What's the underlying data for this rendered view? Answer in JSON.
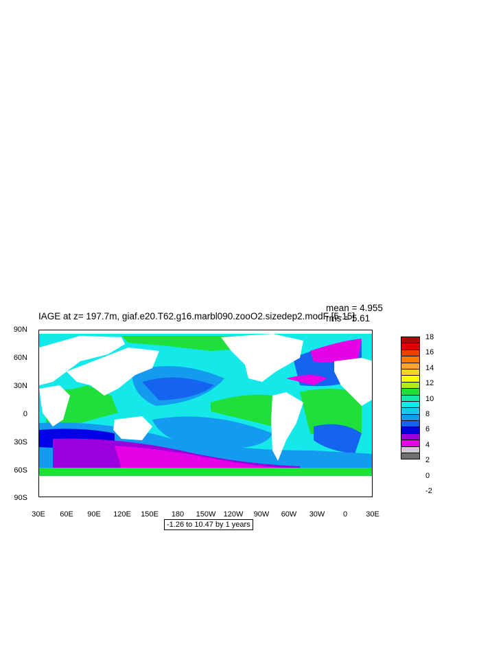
{
  "title": "IAGE at z= 197.7m, giaf.e20.T62.g16.marbl090.zooO2.sizedep2.modF [5-15]",
  "stats": {
    "mean": "mean = 4.955",
    "rms": "rms = 5.61"
  },
  "axes": {
    "y_ticks": [
      "90N",
      "60N",
      "30N",
      "0",
      "30S",
      "60S",
      "90S"
    ],
    "x_ticks": [
      "30E",
      "60E",
      "90E",
      "120E",
      "150E",
      "180",
      "150W",
      "120W",
      "90W",
      "60W",
      "30W",
      "0",
      "30E"
    ]
  },
  "contour_info": "-1.26 to 10.47 by 1 years",
  "colorbar": {
    "labels": [
      "18",
      "16",
      "14",
      "12",
      "10",
      "8",
      "6",
      "4",
      "2",
      "0",
      "-2"
    ],
    "colors": [
      "#b80000",
      "#e10000",
      "#f43c00",
      "#ff7a00",
      "#ffa42c",
      "#ffd12c",
      "#ffff00",
      "#a8f01c",
      "#1fe03a",
      "#14e8a8",
      "#14e8e8",
      "#14c8f0",
      "#149bf0",
      "#1464f0",
      "#0000e6",
      "#9b00dc",
      "#e600e6",
      "#cccccc",
      "#707070"
    ]
  },
  "chart_data": {
    "type": "heatmap",
    "title": "IAGE at z= 197.7m, giaf.e20.T62.g16.marbl090.zooO2.sizedep2.modF [5-15]",
    "variable": "IAGE",
    "units": "years",
    "depth": "197.7m",
    "mean": 4.955,
    "rms": 5.61,
    "contour_range": [
      -1.26,
      10.47
    ],
    "contour_interval": 1,
    "lon_range": [
      30,
      390
    ],
    "lat_range": [
      -90,
      90
    ]
  }
}
